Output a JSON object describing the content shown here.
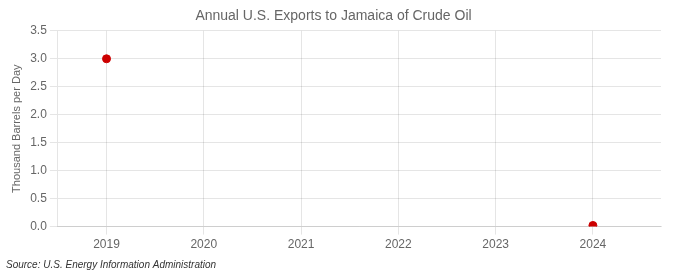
{
  "chart_data": {
    "type": "scatter",
    "title": "Annual U.S. Exports to Jamaica of Crude Oil",
    "ylabel": "Thousand Barrels per Day",
    "annotations": [
      "Source: U.S. Energy Information Administration"
    ],
    "x": [
      2019,
      2024
    ],
    "values": [
      3.0,
      0.02
    ],
    "color": "#cc0000",
    "xlim": [
      2018.5,
      2024.7
    ],
    "xticks": [
      2019,
      2020,
      2021,
      2022,
      2023,
      2024
    ],
    "ylim": [
      0.0,
      3.5
    ],
    "yticks": [
      {
        "value": 0,
        "label": "0.0"
      },
      0.5,
      {
        "value": 1,
        "label": "1.0"
      },
      1.5,
      {
        "value": 2,
        "label": "2.0"
      },
      2.5,
      {
        "value": 3,
        "label": "3.0"
      },
      3.5
    ],
    "grid": true
  }
}
